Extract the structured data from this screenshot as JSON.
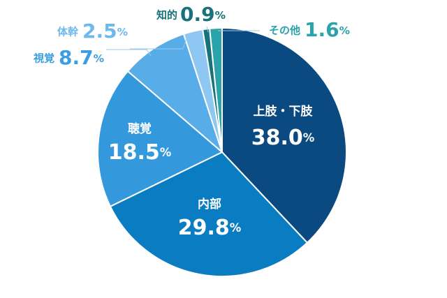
{
  "chart_data": {
    "type": "pie",
    "categories": [
      "上肢・下肢",
      "内部",
      "聴覚",
      "視覚",
      "体幹",
      "知的",
      "その他"
    ],
    "values": [
      38.0,
      29.8,
      18.5,
      8.7,
      2.5,
      0.9,
      1.6
    ],
    "value_labels": [
      "38.0%",
      "29.8%",
      "18.5%",
      "8.7%",
      "2.5%",
      "0.9%",
      "1.6%"
    ],
    "colors": [
      "#0b4a80",
      "#0a7dc2",
      "#3399dc",
      "#58ade9",
      "#8ec8f2",
      "#17727c",
      "#2aa3ab"
    ]
  }
}
